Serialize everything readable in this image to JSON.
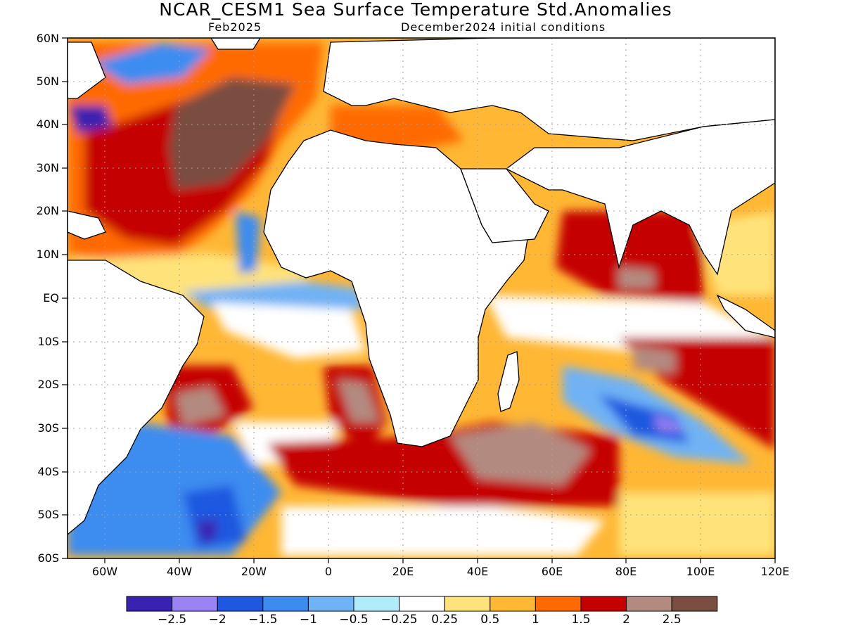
{
  "title": "NCAR_CESM1 Sea Surface Temperature Std.Anomalies",
  "subtitle_left": "Feb2025",
  "subtitle_right": "December2024 initial conditions",
  "map": {
    "lon_range": [
      -70,
      120
    ],
    "lat_range": [
      -60,
      60
    ],
    "grid": "dotted",
    "lat_labels": [
      "60N",
      "50N",
      "40N",
      "30N",
      "20N",
      "10N",
      "EQ",
      "10S",
      "20S",
      "30S",
      "40S",
      "50S",
      "60S"
    ],
    "lon_labels": [
      "60W",
      "40W",
      "20W",
      "0",
      "20E",
      "40E",
      "60E",
      "80E",
      "100E",
      "120E"
    ]
  },
  "colorbar": {
    "colors": [
      "#3a22b0",
      "#9b82f5",
      "#1f58e0",
      "#3c8cf0",
      "#6fb2f5",
      "#b1ecfa",
      "#ffffff",
      "#ffe37a",
      "#ffb734",
      "#ff6a00",
      "#c40000",
      "#b38a80",
      "#7a4e40"
    ],
    "labels": [
      "−2.5",
      "−2",
      "−1.5",
      "−1",
      "−0.5",
      "−0.25",
      "0.25",
      "0.5",
      "1",
      "1.5",
      "2",
      "2.5"
    ]
  }
}
